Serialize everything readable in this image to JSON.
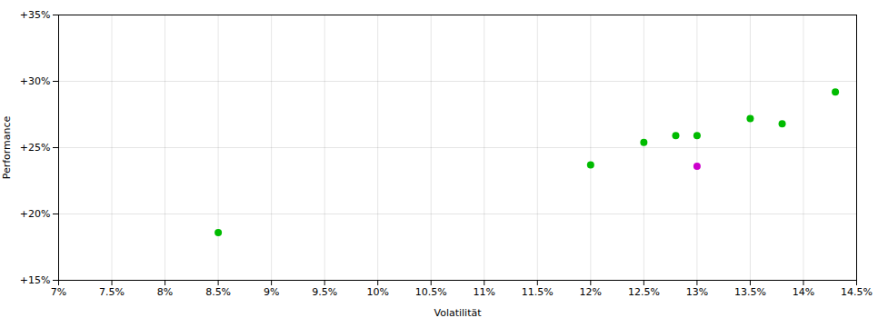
{
  "chart_data": {
    "type": "scatter",
    "xlabel": "Volatilität",
    "ylabel": "Performance",
    "xlim": [
      0.07,
      0.145
    ],
    "ylim": [
      0.15,
      0.35
    ],
    "xticks": [
      {
        "value": 0.07,
        "label": "7%"
      },
      {
        "value": 0.075,
        "label": "7.5%"
      },
      {
        "value": 0.08,
        "label": "8%"
      },
      {
        "value": 0.085,
        "label": "8.5%"
      },
      {
        "value": 0.09,
        "label": "9%"
      },
      {
        "value": 0.095,
        "label": "9.5%"
      },
      {
        "value": 0.1,
        "label": "10%"
      },
      {
        "value": 0.105,
        "label": "10.5%"
      },
      {
        "value": 0.11,
        "label": "11%"
      },
      {
        "value": 0.115,
        "label": "11.5%"
      },
      {
        "value": 0.12,
        "label": "12%"
      },
      {
        "value": 0.125,
        "label": "12.5%"
      },
      {
        "value": 0.13,
        "label": "13%"
      },
      {
        "value": 0.135,
        "label": "13.5%"
      },
      {
        "value": 0.14,
        "label": "14%"
      },
      {
        "value": 0.145,
        "label": "14.5%"
      }
    ],
    "yticks": [
      {
        "value": 0.15,
        "label": "+15%"
      },
      {
        "value": 0.2,
        "label": "+20%"
      },
      {
        "value": 0.25,
        "label": "+25%"
      },
      {
        "value": 0.3,
        "label": "+30%"
      },
      {
        "value": 0.35,
        "label": "+35%"
      }
    ],
    "grid": true,
    "series": [
      {
        "color": "#00bb00",
        "x": [
          0.085,
          0.12,
          0.125,
          0.128,
          0.13,
          0.135,
          0.138,
          0.143
        ],
        "values": [
          0.186,
          0.237,
          0.254,
          0.259,
          0.259,
          0.272,
          0.268,
          0.292
        ]
      },
      {
        "color": "#cc00cc",
        "x": [
          0.13
        ],
        "values": [
          0.236
        ]
      }
    ]
  }
}
